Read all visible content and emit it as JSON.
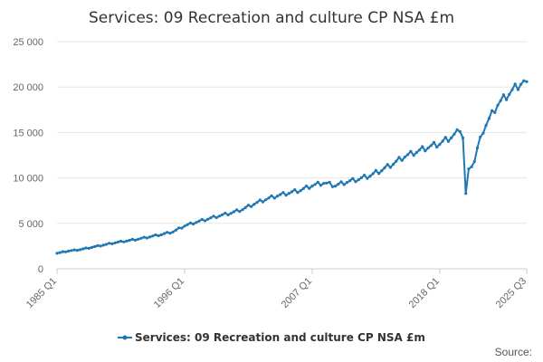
{
  "chart_data": {
    "type": "line",
    "title": "Services: 09 Recreation and culture CP NSA £m",
    "xlabel": "",
    "ylabel": "",
    "ylim": [
      0,
      25000
    ],
    "y_ticks": [
      0,
      5000,
      10000,
      15000,
      20000,
      25000
    ],
    "y_tick_labels": [
      "0",
      "5 000",
      "10 000",
      "15 000",
      "20 000",
      "25 000"
    ],
    "x_tick_labels": [
      "1985 Q1",
      "1996 Q1",
      "2007 Q1",
      "2018 Q1",
      "2025 Q3"
    ],
    "x_range": [
      "1985 Q1",
      "2025 Q3"
    ],
    "grid": "horizontal",
    "legend_position": "bottom",
    "color": "#1f77b4",
    "series": [
      {
        "name": "Services: 09 Recreation and culture CP NSA £m",
        "anchors": [
          [
            "1985 Q1",
            1700
          ],
          [
            "1986 Q1",
            1950
          ],
          [
            "1987 Q1",
            2100
          ],
          [
            "1988 Q1",
            2350
          ],
          [
            "1989 Q1",
            2600
          ],
          [
            "1990 Q1",
            2850
          ],
          [
            "1991 Q1",
            3050
          ],
          [
            "1992 Q1",
            3250
          ],
          [
            "1993 Q1",
            3500
          ],
          [
            "1994 Q1",
            3750
          ],
          [
            "1995 Q1",
            4050
          ],
          [
            "1996 Q1",
            4700
          ],
          [
            "1997 Q1",
            5100
          ],
          [
            "1998 Q1",
            5450
          ],
          [
            "1999 Q1",
            5800
          ],
          [
            "2000 Q1",
            6100
          ],
          [
            "2001 Q1",
            6500
          ],
          [
            "2002 Q1",
            7100
          ],
          [
            "2003 Q1",
            7600
          ],
          [
            "2004 Q1",
            8000
          ],
          [
            "2005 Q1",
            8300
          ],
          [
            "2006 Q1",
            8600
          ],
          [
            "2007 Q1",
            9100
          ],
          [
            "2008 Q1",
            9400
          ],
          [
            "2009 Q1",
            9100
          ],
          [
            "2010 Q1",
            9500
          ],
          [
            "2011 Q1",
            9800
          ],
          [
            "2012 Q1",
            10200
          ],
          [
            "2013 Q1",
            10800
          ],
          [
            "2014 Q1",
            11500
          ],
          [
            "2015 Q1",
            12300
          ],
          [
            "2016 Q1",
            12800
          ],
          [
            "2017 Q1",
            13300
          ],
          [
            "2018 Q1",
            13700
          ],
          [
            "2019 Q1",
            14400
          ],
          [
            "2019 Q4",
            15100
          ],
          [
            "2020 Q1",
            14400
          ],
          [
            "2020 Q2",
            8300
          ],
          [
            "2020 Q3",
            11000
          ],
          [
            "2021 Q1",
            11800
          ],
          [
            "2021 Q3",
            14500
          ],
          [
            "2022 Q1",
            15800
          ],
          [
            "2023 Q1",
            18000
          ],
          [
            "2024 Q1",
            19200
          ],
          [
            "2025 Q1",
            20300
          ],
          [
            "2025 Q3",
            20600
          ]
        ]
      }
    ]
  },
  "source_label": "Source:"
}
